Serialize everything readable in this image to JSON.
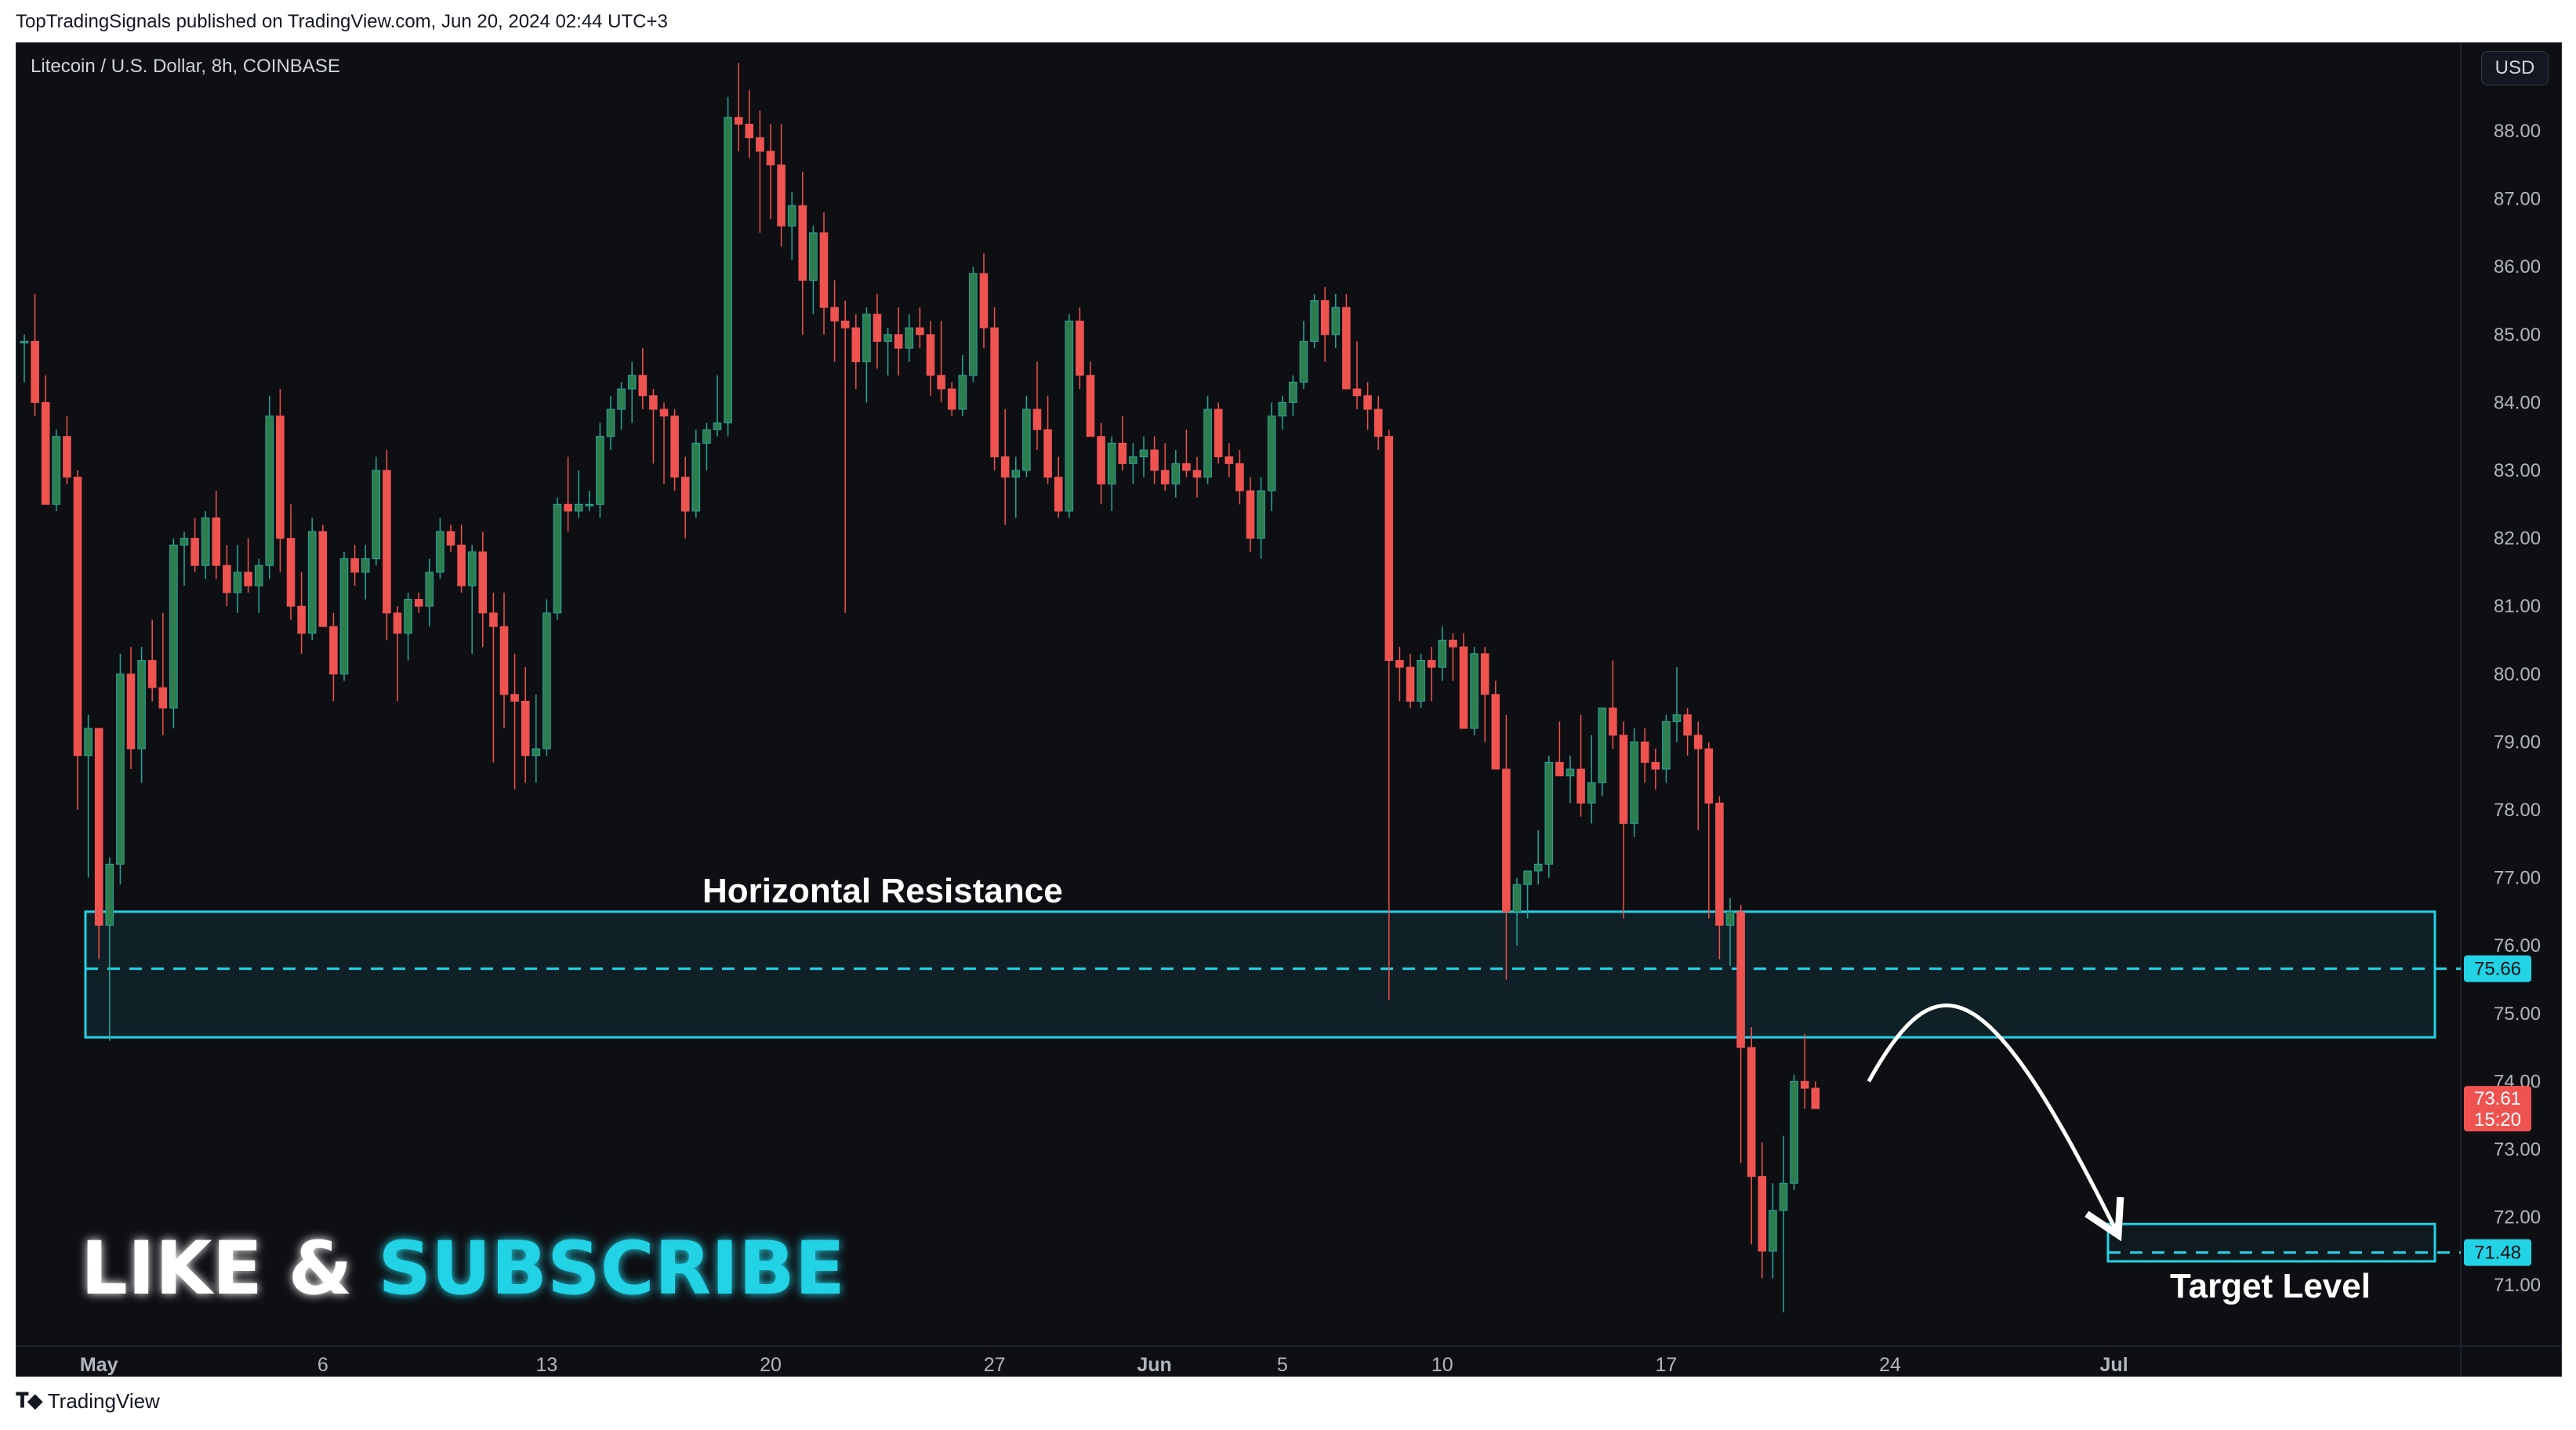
{
  "header": {
    "publisher_line": "TopTradingSignals published on TradingView.com, Jun 20, 2024 02:44 UTC+3"
  },
  "chart_header": {
    "symbol_title": "Litecoin / U.S. Dollar, 8h, COINBASE",
    "currency": "USD"
  },
  "footer": {
    "brand": "TradingView"
  },
  "colors": {
    "up": "#26a69a",
    "up_body": "#2e7d4f",
    "down": "#ef5350",
    "zone": "#22d3e6",
    "background": "#0e0f13",
    "axis_text": "#b2b5be",
    "white": "#ffffff"
  },
  "chart_data": {
    "type": "candlestick",
    "symbol": "Litecoin / U.S. Dollar",
    "timeframe": "8h",
    "exchange": "COINBASE",
    "ylim": [
      70.6,
      88.9
    ],
    "y_ticks": [
      "88.00",
      "87.00",
      "86.00",
      "85.00",
      "84.00",
      "83.00",
      "82.00",
      "81.00",
      "80.00",
      "79.00",
      "78.00",
      "77.00",
      "76.00",
      "75.00",
      "74.00",
      "73.00",
      "72.00",
      "71.00"
    ],
    "x_ticks": [
      {
        "label": "May",
        "bold": true,
        "idx": 7
      },
      {
        "label": "6",
        "idx": 28
      },
      {
        "label": "13",
        "idx": 49
      },
      {
        "label": "20",
        "idx": 70
      },
      {
        "label": "27",
        "idx": 91
      },
      {
        "label": "Jun",
        "bold": true,
        "idx": 106
      },
      {
        "label": "5",
        "idx": 118
      },
      {
        "label": "10",
        "idx": 133
      },
      {
        "label": "17",
        "idx": 154
      },
      {
        "label": "24",
        "idx": 175
      },
      {
        "label": "Jul",
        "bold": true,
        "idx": 196
      }
    ],
    "ohlc": [
      [
        84.9,
        85.0,
        84.3,
        84.9
      ],
      [
        84.9,
        85.6,
        83.8,
        84.0
      ],
      [
        84.0,
        84.4,
        82.6,
        82.5
      ],
      [
        82.5,
        83.6,
        82.4,
        83.5
      ],
      [
        83.5,
        83.8,
        82.8,
        82.9
      ],
      [
        82.9,
        83.0,
        78.0,
        78.8
      ],
      [
        78.8,
        79.4,
        77.0,
        79.2
      ],
      [
        79.2,
        79.2,
        75.8,
        76.3
      ],
      [
        76.3,
        77.3,
        74.6,
        77.2
      ],
      [
        77.2,
        80.3,
        76.9,
        80.0
      ],
      [
        80.0,
        80.4,
        78.6,
        78.9
      ],
      [
        78.9,
        80.4,
        78.4,
        80.2
      ],
      [
        80.2,
        80.8,
        79.6,
        79.8
      ],
      [
        79.8,
        80.9,
        79.1,
        79.5
      ],
      [
        79.5,
        82.0,
        79.2,
        81.9
      ],
      [
        81.9,
        82.1,
        81.3,
        82.0
      ],
      [
        82.0,
        82.3,
        81.5,
        81.6
      ],
      [
        81.6,
        82.4,
        81.4,
        82.3
      ],
      [
        82.3,
        82.7,
        81.4,
        81.6
      ],
      [
        81.6,
        81.9,
        81.0,
        81.2
      ],
      [
        81.2,
        81.9,
        80.9,
        81.5
      ],
      [
        81.5,
        82.0,
        81.2,
        81.3
      ],
      [
        81.3,
        81.7,
        80.9,
        81.6
      ],
      [
        81.6,
        84.1,
        81.4,
        83.8
      ],
      [
        83.8,
        84.2,
        81.5,
        82.0
      ],
      [
        82.0,
        82.5,
        80.8,
        81.0
      ],
      [
        81.0,
        81.5,
        80.3,
        80.6
      ],
      [
        80.6,
        82.3,
        80.5,
        82.1
      ],
      [
        82.1,
        82.2,
        80.8,
        80.7
      ],
      [
        80.7,
        80.9,
        79.6,
        80.0
      ],
      [
        80.0,
        81.8,
        79.9,
        81.7
      ],
      [
        81.7,
        81.9,
        81.3,
        81.5
      ],
      [
        81.5,
        81.9,
        81.1,
        81.7
      ],
      [
        81.7,
        83.2,
        81.6,
        83.0
      ],
      [
        83.0,
        83.3,
        80.5,
        80.9
      ],
      [
        80.9,
        81.0,
        79.6,
        80.6
      ],
      [
        80.6,
        81.2,
        80.2,
        81.1
      ],
      [
        81.1,
        81.2,
        80.9,
        81.0
      ],
      [
        81.0,
        81.7,
        80.7,
        81.5
      ],
      [
        81.5,
        82.3,
        81.4,
        82.1
      ],
      [
        82.1,
        82.2,
        81.8,
        81.9
      ],
      [
        81.9,
        82.2,
        81.2,
        81.3
      ],
      [
        81.3,
        81.9,
        80.3,
        81.8
      ],
      [
        81.8,
        82.1,
        80.4,
        80.9
      ],
      [
        80.9,
        81.2,
        78.7,
        80.7
      ],
      [
        80.7,
        81.2,
        79.2,
        79.7
      ],
      [
        79.7,
        80.3,
        78.3,
        79.6
      ],
      [
        79.6,
        80.1,
        78.4,
        78.8
      ],
      [
        78.8,
        79.7,
        78.4,
        78.9
      ],
      [
        78.9,
        81.1,
        78.8,
        80.9
      ],
      [
        80.9,
        82.6,
        80.8,
        82.5
      ],
      [
        82.5,
        83.2,
        82.1,
        82.4
      ],
      [
        82.4,
        83.0,
        82.3,
        82.5
      ],
      [
        82.5,
        82.7,
        82.4,
        82.5
      ],
      [
        82.5,
        83.7,
        82.3,
        83.5
      ],
      [
        83.5,
        84.1,
        83.3,
        83.9
      ],
      [
        83.9,
        84.3,
        83.6,
        84.2
      ],
      [
        84.2,
        84.6,
        83.7,
        84.4
      ],
      [
        84.4,
        84.8,
        83.9,
        84.1
      ],
      [
        84.1,
        84.2,
        83.1,
        83.9
      ],
      [
        83.9,
        84.0,
        82.8,
        83.8
      ],
      [
        83.8,
        83.9,
        82.7,
        82.9
      ],
      [
        82.9,
        83.2,
        82.0,
        82.4
      ],
      [
        82.4,
        83.6,
        82.3,
        83.4
      ],
      [
        83.4,
        83.7,
        83.0,
        83.6
      ],
      [
        83.6,
        84.4,
        83.5,
        83.7
      ],
      [
        83.7,
        88.5,
        83.5,
        88.2
      ],
      [
        88.2,
        89.0,
        87.7,
        88.1
      ],
      [
        88.1,
        88.6,
        87.6,
        87.9
      ],
      [
        87.9,
        88.3,
        86.5,
        87.7
      ],
      [
        87.7,
        88.1,
        86.7,
        87.5
      ],
      [
        87.5,
        88.1,
        86.3,
        86.6
      ],
      [
        86.6,
        87.1,
        86.1,
        86.9
      ],
      [
        86.9,
        87.4,
        85.0,
        85.8
      ],
      [
        85.8,
        86.6,
        85.3,
        86.5
      ],
      [
        86.5,
        86.8,
        85.0,
        85.4
      ],
      [
        85.4,
        85.8,
        84.6,
        85.2
      ],
      [
        85.2,
        85.5,
        80.9,
        85.1
      ],
      [
        85.1,
        85.3,
        84.2,
        84.6
      ],
      [
        84.6,
        85.4,
        84.0,
        85.3
      ],
      [
        85.3,
        85.6,
        84.5,
        84.9
      ],
      [
        84.9,
        85.1,
        84.4,
        85.0
      ],
      [
        85.0,
        85.4,
        84.4,
        84.8
      ],
      [
        84.8,
        85.3,
        84.6,
        85.1
      ],
      [
        85.1,
        85.4,
        84.8,
        85.0
      ],
      [
        85.0,
        85.2,
        84.1,
        84.4
      ],
      [
        84.4,
        85.2,
        84.0,
        84.2
      ],
      [
        84.2,
        84.3,
        83.8,
        83.9
      ],
      [
        83.9,
        84.7,
        83.8,
        84.4
      ],
      [
        84.4,
        86.0,
        84.3,
        85.9
      ],
      [
        85.9,
        86.2,
        84.8,
        85.1
      ],
      [
        85.1,
        85.4,
        83.0,
        83.2
      ],
      [
        83.2,
        83.9,
        82.2,
        82.9
      ],
      [
        82.9,
        83.2,
        82.3,
        83.0
      ],
      [
        83.0,
        84.1,
        82.9,
        83.9
      ],
      [
        83.9,
        84.6,
        83.3,
        83.6
      ],
      [
        83.6,
        84.1,
        82.8,
        82.9
      ],
      [
        82.9,
        83.2,
        82.3,
        82.4
      ],
      [
        82.4,
        85.3,
        82.3,
        85.2
      ],
      [
        85.2,
        85.4,
        84.2,
        84.4
      ],
      [
        84.4,
        84.6,
        83.5,
        83.5
      ],
      [
        83.5,
        83.7,
        82.5,
        82.8
      ],
      [
        82.8,
        83.5,
        82.4,
        83.4
      ],
      [
        83.4,
        83.8,
        83.0,
        83.1
      ],
      [
        83.1,
        83.4,
        82.8,
        83.2
      ],
      [
        83.2,
        83.5,
        82.9,
        83.3
      ],
      [
        83.3,
        83.5,
        82.8,
        83.0
      ],
      [
        83.0,
        83.4,
        82.7,
        82.8
      ],
      [
        82.8,
        83.3,
        82.6,
        83.1
      ],
      [
        83.1,
        83.6,
        82.9,
        83.0
      ],
      [
        83.0,
        83.2,
        82.6,
        82.9
      ],
      [
        82.9,
        84.1,
        82.8,
        83.9
      ],
      [
        83.9,
        84.0,
        83.1,
        83.2
      ],
      [
        83.2,
        83.4,
        82.9,
        83.1
      ],
      [
        83.1,
        83.3,
        82.5,
        82.7
      ],
      [
        82.7,
        82.9,
        81.8,
        82.0
      ],
      [
        82.0,
        82.9,
        81.7,
        82.7
      ],
      [
        82.7,
        84.0,
        82.4,
        83.8
      ],
      [
        83.8,
        84.1,
        83.6,
        84.0
      ],
      [
        84.0,
        84.4,
        83.8,
        84.3
      ],
      [
        84.3,
        85.2,
        84.2,
        84.9
      ],
      [
        84.9,
        85.6,
        84.8,
        85.5
      ],
      [
        85.5,
        85.7,
        84.6,
        85.0
      ],
      [
        85.0,
        85.6,
        84.8,
        85.4
      ],
      [
        85.4,
        85.6,
        84.2,
        84.2
      ],
      [
        84.2,
        84.9,
        83.9,
        84.1
      ],
      [
        84.1,
        84.3,
        83.6,
        83.9
      ],
      [
        83.9,
        84.1,
        83.3,
        83.5
      ],
      [
        83.5,
        83.6,
        75.2,
        80.2
      ],
      [
        80.2,
        80.4,
        79.6,
        80.1
      ],
      [
        80.1,
        80.3,
        79.5,
        79.6
      ],
      [
        79.6,
        80.3,
        79.5,
        80.2
      ],
      [
        80.2,
        80.4,
        79.6,
        80.1
      ],
      [
        80.1,
        80.7,
        79.9,
        80.5
      ],
      [
        80.5,
        80.6,
        79.9,
        80.4
      ],
      [
        80.4,
        80.6,
        79.2,
        79.2
      ],
      [
        79.2,
        80.4,
        79.1,
        80.3
      ],
      [
        80.3,
        80.4,
        79.0,
        79.7
      ],
      [
        79.7,
        79.9,
        78.6,
        78.6
      ],
      [
        78.6,
        79.4,
        75.5,
        76.5
      ],
      [
        76.5,
        77.0,
        76.0,
        76.9
      ],
      [
        76.9,
        77.1,
        76.4,
        77.1
      ],
      [
        77.1,
        77.7,
        76.9,
        77.2
      ],
      [
        77.2,
        78.8,
        77.0,
        78.7
      ],
      [
        78.7,
        79.3,
        78.5,
        78.5
      ],
      [
        78.5,
        78.8,
        78.1,
        78.6
      ],
      [
        78.6,
        79.4,
        77.9,
        78.1
      ],
      [
        78.1,
        79.1,
        77.8,
        78.4
      ],
      [
        78.4,
        79.5,
        78.2,
        79.5
      ],
      [
        79.5,
        80.2,
        78.9,
        79.1
      ],
      [
        79.1,
        79.3,
        76.4,
        77.8
      ],
      [
        77.8,
        79.2,
        77.6,
        79.0
      ],
      [
        79.0,
        79.2,
        78.4,
        78.7
      ],
      [
        78.7,
        78.9,
        78.3,
        78.6
      ],
      [
        78.6,
        79.4,
        78.4,
        79.3
      ],
      [
        79.3,
        80.1,
        79.0,
        79.4
      ],
      [
        79.4,
        79.5,
        78.8,
        79.1
      ],
      [
        79.1,
        79.3,
        77.7,
        78.9
      ],
      [
        78.9,
        79.0,
        76.4,
        78.1
      ],
      [
        78.1,
        78.2,
        75.8,
        76.3
      ],
      [
        76.3,
        76.7,
        75.7,
        76.5
      ],
      [
        76.5,
        76.6,
        72.8,
        74.5
      ],
      [
        74.5,
        74.8,
        71.6,
        72.6
      ],
      [
        72.6,
        73.1,
        71.1,
        71.5
      ],
      [
        71.5,
        72.5,
        71.1,
        72.1
      ],
      [
        72.1,
        73.2,
        70.6,
        72.5
      ],
      [
        72.5,
        74.1,
        72.4,
        74.0
      ],
      [
        74.0,
        74.7,
        73.6,
        73.9
      ],
      [
        73.9,
        74.0,
        73.6,
        73.6
      ]
    ],
    "annotations": {
      "resistance_label": "Horizontal Resistance",
      "resistance_zone": {
        "top": 76.5,
        "bottom": 74.65,
        "mid": 75.66
      },
      "target_label": "Target Level",
      "target_zone": {
        "top": 71.9,
        "bottom": 71.35,
        "mid": 71.48
      },
      "projection_path": [
        [
          173.0,
          74.0
        ],
        [
          179.5,
          75.85
        ],
        [
          184.2,
          75.6
        ],
        [
          196.2,
          71.8
        ]
      ],
      "cta_part1": "LIKE &",
      "cta_part2": "SUBSCRIBE"
    },
    "price_labels": {
      "resistance": "75.66",
      "target": "71.48",
      "current_price": "73.61",
      "countdown": "15:20"
    }
  }
}
